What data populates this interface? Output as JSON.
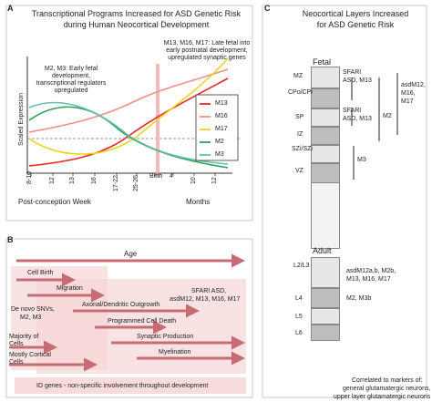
{
  "panel_a": {
    "letter": "A",
    "title_line1": "Transcriptional Programs Increased for ASD Genetic Risk",
    "title_line2": "during Human Neocortical Development",
    "y_axis_label": "Scaled Expression",
    "annot_early": "M2, M3: Early fetal development, transcriptional regulators upregulated",
    "annot_late": "M13, M16, M17: Late fetal into early postnatal development, upregulated synaptic genes",
    "ticks_pcw": [
      "8-10",
      "12",
      "13",
      "16",
      "17-22",
      "25-26"
    ],
    "birth_label": "Birth",
    "ticks_months": [
      "4",
      "10",
      "12"
    ],
    "x_label_pcw": "Post-conception Week",
    "x_label_months": "Months",
    "legend": [
      {
        "name": "M13",
        "color": "#e8262c"
      },
      {
        "name": "M16",
        "color": "#ee8f86"
      },
      {
        "name": "M17",
        "color": "#e8d51f"
      },
      {
        "name": "M2",
        "color": "#2aa255"
      },
      {
        "name": "M3",
        "color": "#66bfab"
      }
    ]
  },
  "panel_b": {
    "letter": "B",
    "age": "Age",
    "cell_birth": "Cell Birth",
    "migration": "Migration",
    "de_novo_1": "De novo SNVs,",
    "de_novo_2": "M2, M3",
    "sfari_1": "SFARI ASD,",
    "sfari_2": "asdM12, M13, M16, M17",
    "axonal": "Axonal/Dendritic Outgrowth",
    "pcd": "Programmed Cell Death",
    "synaptic": "Synaptic Production",
    "myelination": "Myelination",
    "majority_1": "Majority of",
    "majority_2": "Cells",
    "mostly_1": "Mostly Cortical",
    "mostly_2": "Cells",
    "id_genes": "ID genes - non-specific involvement throughout development"
  },
  "panel_c": {
    "letter": "C",
    "title_line1": "Neocortical Layers Increased",
    "title_line2": "for ASD Genetic Risk",
    "fetal_label": "Fetal",
    "adult_label": "Adult",
    "fetal_layers": [
      "MZ",
      "CPo/CPi",
      "SP",
      "IZ",
      "SZi/SZi",
      "VZ"
    ],
    "adult_layers": [
      "L2/L3",
      "L4",
      "L5",
      "L6"
    ],
    "sfari_a1": "SFARI",
    "sfari_a2": "ASD, M13",
    "sfari_b1": "SFARI",
    "sfari_b2": "ASD, M13",
    "asd_1": "asdM12,",
    "asd_2": "M16,",
    "asd_3": "M17",
    "m2_label": "M2",
    "m3_label": "M3",
    "adult_annot1_1": "asdM12a,b, M2b,",
    "adult_annot1_2": "M13, M16, M17",
    "adult_annot2": "M2, M3b",
    "footer_1": "Correlated to markers of:",
    "footer_2": "general glutamatergic neurons,",
    "footer_3": "upper layer glutamatergic neurons"
  }
}
